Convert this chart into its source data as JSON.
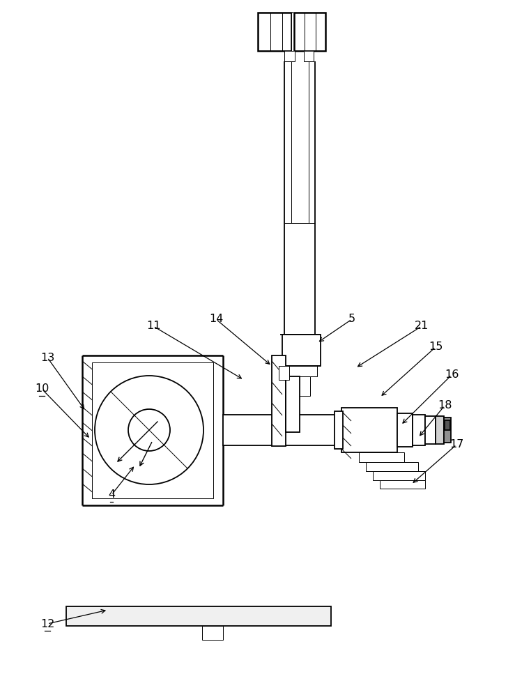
{
  "bg_color": "#ffffff",
  "figsize": [
    7.39,
    10.0
  ],
  "dpi": 100,
  "lw_main": 1.3,
  "lw_thin": 0.7,
  "lw_thick": 1.8,
  "label_fs": 11.5
}
